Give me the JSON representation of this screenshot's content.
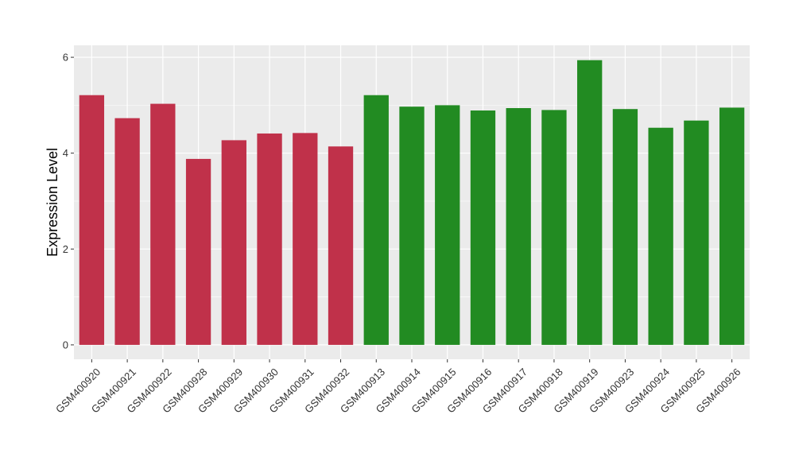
{
  "chart_data": {
    "type": "bar",
    "title": "",
    "xlabel": "",
    "ylabel": "Expression Level",
    "ylim": [
      -0.3,
      6.25
    ],
    "yticks": [
      0,
      2,
      4,
      6
    ],
    "grid": true,
    "categories": [
      "GSM400920",
      "GSM400921",
      "GSM400922",
      "GSM400928",
      "GSM400929",
      "GSM400930",
      "GSM400931",
      "GSM400932",
      "GSM400913",
      "GSM400914",
      "GSM400915",
      "GSM400916",
      "GSM400917",
      "GSM400918",
      "GSM400919",
      "GSM400923",
      "GSM400924",
      "GSM400925",
      "GSM400926"
    ],
    "values": [
      5.21,
      4.73,
      5.03,
      3.88,
      4.27,
      4.41,
      4.42,
      4.14,
      5.21,
      4.97,
      5.0,
      4.89,
      4.94,
      4.9,
      5.94,
      4.92,
      4.53,
      4.68,
      4.95
    ],
    "bar_colors": [
      "#c0314a",
      "#c0314a",
      "#c0314a",
      "#c0314a",
      "#c0314a",
      "#c0314a",
      "#c0314a",
      "#c0314a",
      "#228b22",
      "#228b22",
      "#228b22",
      "#228b22",
      "#228b22",
      "#228b22",
      "#228b22",
      "#228b22",
      "#228b22",
      "#228b22",
      "#228b22"
    ],
    "panel_background": "#ebebeb",
    "grid_color": "#ffffff"
  }
}
